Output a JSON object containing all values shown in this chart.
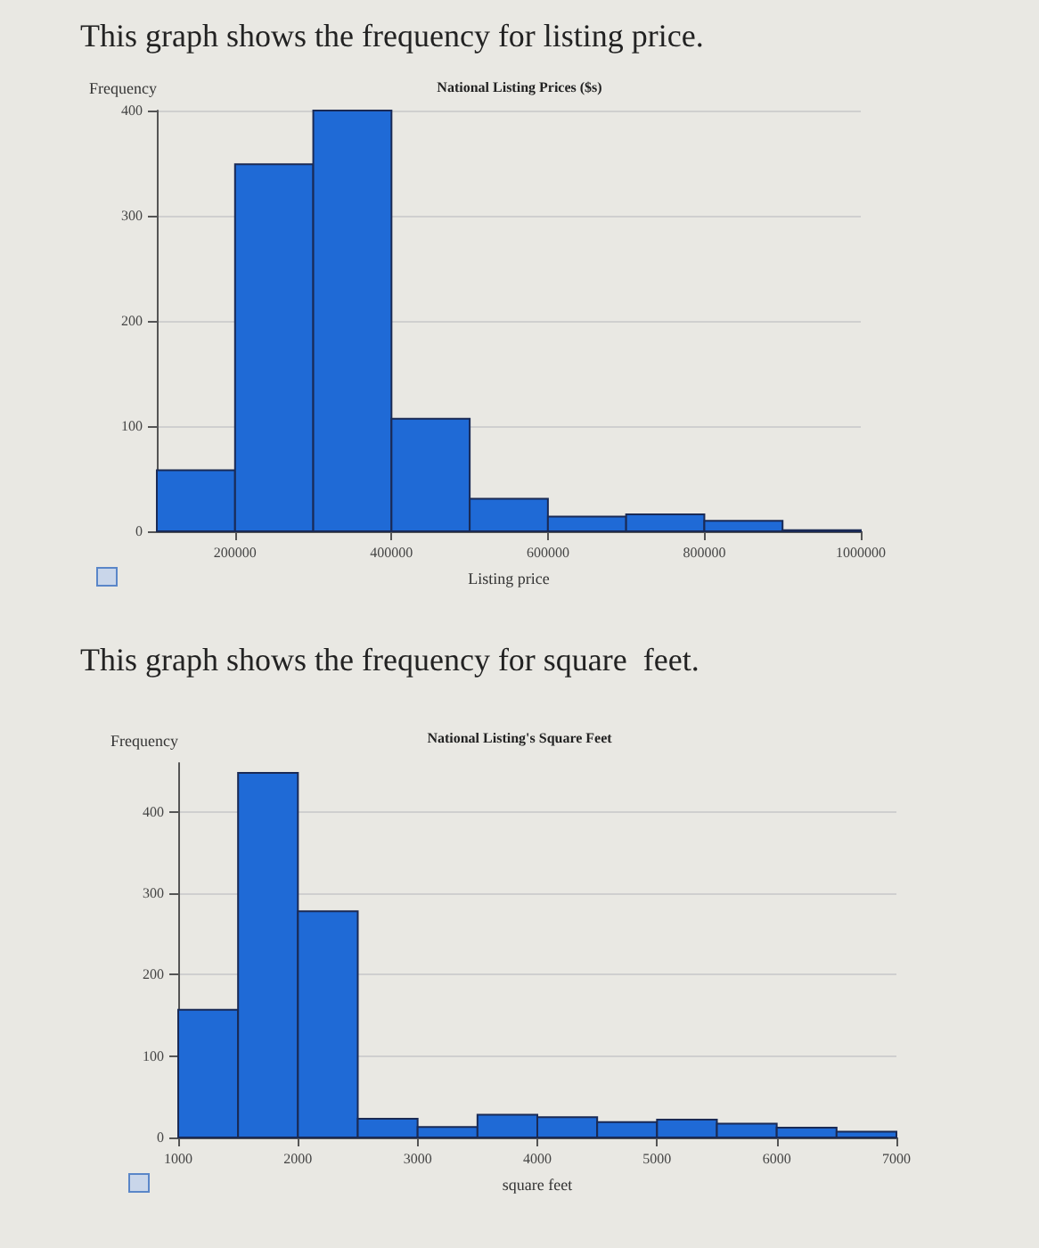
{
  "chart_data": [
    {
      "type": "histogram",
      "title": "This graph shows the frequency for listing price.",
      "subtitle": "National Listing Prices ($s)",
      "xlabel": "Listing price",
      "ylabel": "Frequency",
      "bins": [
        100000,
        200000,
        300000,
        400000,
        500000,
        600000,
        700000,
        800000,
        900000,
        1000000
      ],
      "values": [
        58,
        349,
        400,
        107,
        31,
        14,
        16,
        10,
        1
      ],
      "color": "#1f6ad6",
      "xlim": [
        100000,
        1000000
      ],
      "xticks": [
        200000,
        400000,
        600000,
        800000,
        1000000
      ],
      "ylim": [
        0,
        400
      ],
      "yticks": [
        0,
        100,
        200,
        300,
        400
      ],
      "grid": "y"
    },
    {
      "type": "histogram",
      "title": "This graph shows the frequency for square  feet.",
      "subtitle": "National Listing's Square Feet",
      "xlabel": "square feet",
      "ylabel": "Frequency",
      "bins": [
        1000,
        1500,
        2000,
        2500,
        3000,
        3500,
        4000,
        4500,
        5000,
        5500,
        6000,
        6500,
        7000
      ],
      "values": [
        157,
        448,
        278,
        23,
        13,
        28,
        25,
        19,
        22,
        17,
        12,
        7
      ],
      "color": "#1f6ad6",
      "xlim": [
        1000,
        7000
      ],
      "xticks": [
        1000,
        2000,
        3000,
        4000,
        5000,
        6000,
        7000
      ],
      "ylim": [
        0,
        460
      ],
      "yticks": [
        0,
        100,
        200,
        300,
        400
      ],
      "grid": "y"
    }
  ]
}
